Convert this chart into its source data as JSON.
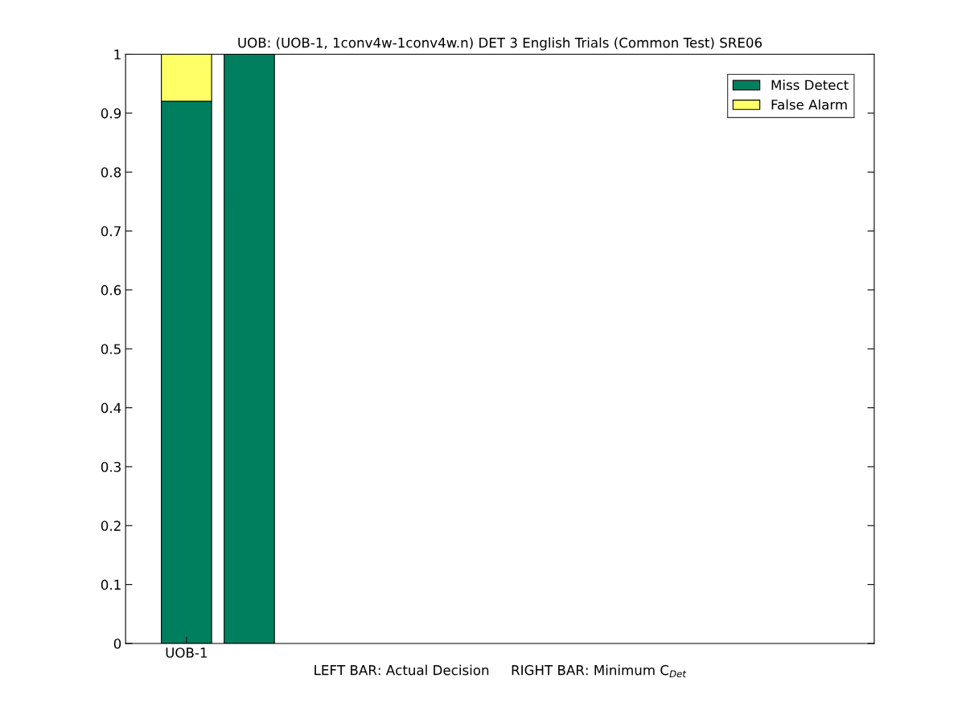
{
  "chart_data": {
    "type": "bar",
    "title": "UOB: (UOB-1, 1conv4w-1conv4w.n) DET 3 English Trials (Common Test) SRE06",
    "xlabel": "LEFT BAR: Actual Decision     RIGHT BAR: Minimum C$_{Det}$",
    "categories": [
      "UOB-1",
      null
    ],
    "stacked": true,
    "series": [
      {
        "name": "Miss Detect",
        "color": "#007f5f",
        "values": [
          0.92,
          1.0
        ]
      },
      {
        "name": "False Alarm",
        "color": "#ffff66",
        "values": [
          0.08,
          null
        ]
      }
    ],
    "ylim": [
      0,
      1
    ],
    "yticks": [
      0,
      0.1,
      0.2,
      0.3,
      0.4,
      0.5,
      0.6,
      0.7,
      0.8,
      0.9,
      1
    ],
    "grid": false,
    "legend": "top right"
  }
}
